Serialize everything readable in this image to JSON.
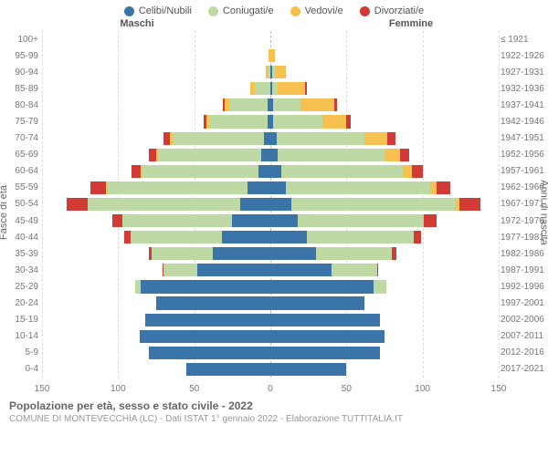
{
  "chart": {
    "type": "population-pyramid",
    "legend": [
      {
        "label": "Celibi/Nubili",
        "color": "#3b74a8"
      },
      {
        "label": "Coniugati/e",
        "color": "#bfd9a4"
      },
      {
        "label": "Vedovi/e",
        "color": "#f7c152"
      },
      {
        "label": "Divorziati/e",
        "color": "#d13a35"
      }
    ],
    "headers": {
      "male": "Maschi",
      "female": "Femmine"
    },
    "y_left_label": "Fasce di età",
    "y_right_label": "Anni di nascita",
    "x_max": 150,
    "x_ticks": [
      150,
      100,
      50,
      0,
      50,
      100,
      150
    ],
    "x_tick_positions": [
      0,
      16.67,
      33.33,
      50,
      66.67,
      83.33,
      100
    ],
    "background_color": "#ffffff",
    "grid_color": "#dddddd",
    "center_line_color": "#bbbbbb",
    "rows": [
      {
        "age": "100+",
        "years": "≤ 1921",
        "m": [
          0,
          0,
          0,
          0
        ],
        "f": [
          0,
          0,
          0,
          0
        ]
      },
      {
        "age": "95-99",
        "years": "1922-1926",
        "m": [
          0,
          0,
          1,
          0
        ],
        "f": [
          0,
          0,
          3,
          0
        ]
      },
      {
        "age": "90-94",
        "years": "1927-1931",
        "m": [
          0,
          1,
          2,
          0
        ],
        "f": [
          1,
          2,
          7,
          0
        ]
      },
      {
        "age": "85-89",
        "years": "1932-1936",
        "m": [
          0,
          10,
          3,
          0
        ],
        "f": [
          1,
          4,
          18,
          1
        ]
      },
      {
        "age": "80-84",
        "years": "1937-1941",
        "m": [
          2,
          25,
          3,
          1
        ],
        "f": [
          2,
          18,
          22,
          2
        ]
      },
      {
        "age": "75-79",
        "years": "1942-1946",
        "m": [
          2,
          38,
          2,
          2
        ],
        "f": [
          2,
          32,
          16,
          3
        ]
      },
      {
        "age": "70-74",
        "years": "1947-1951",
        "m": [
          4,
          60,
          2,
          4
        ],
        "f": [
          4,
          58,
          15,
          5
        ]
      },
      {
        "age": "65-69",
        "years": "1952-1956",
        "m": [
          6,
          68,
          1,
          5
        ],
        "f": [
          5,
          70,
          10,
          6
        ]
      },
      {
        "age": "60-64",
        "years": "1957-1961",
        "m": [
          8,
          76,
          1,
          6
        ],
        "f": [
          7,
          80,
          6,
          7
        ]
      },
      {
        "age": "55-59",
        "years": "1962-1966",
        "m": [
          15,
          92,
          1,
          10
        ],
        "f": [
          10,
          95,
          4,
          9
        ]
      },
      {
        "age": "50-54",
        "years": "1967-1971",
        "m": [
          20,
          100,
          0,
          14
        ],
        "f": [
          14,
          108,
          2,
          14
        ]
      },
      {
        "age": "45-49",
        "years": "1972-1976",
        "m": [
          25,
          72,
          0,
          7
        ],
        "f": [
          18,
          82,
          1,
          8
        ]
      },
      {
        "age": "40-44",
        "years": "1977-1981",
        "m": [
          32,
          60,
          0,
          4
        ],
        "f": [
          24,
          70,
          0,
          5
        ]
      },
      {
        "age": "35-39",
        "years": "1982-1986",
        "m": [
          38,
          40,
          0,
          2
        ],
        "f": [
          30,
          50,
          0,
          3
        ]
      },
      {
        "age": "30-34",
        "years": "1987-1991",
        "m": [
          48,
          22,
          0,
          1
        ],
        "f": [
          40,
          30,
          0,
          1
        ]
      },
      {
        "age": "25-29",
        "years": "1992-1996",
        "m": [
          85,
          4,
          0,
          0
        ],
        "f": [
          68,
          8,
          0,
          0
        ]
      },
      {
        "age": "20-24",
        "years": "1997-2001",
        "m": [
          75,
          0,
          0,
          0
        ],
        "f": [
          62,
          0,
          0,
          0
        ]
      },
      {
        "age": "15-19",
        "years": "2002-2006",
        "m": [
          82,
          0,
          0,
          0
        ],
        "f": [
          72,
          0,
          0,
          0
        ]
      },
      {
        "age": "10-14",
        "years": "2007-2011",
        "m": [
          86,
          0,
          0,
          0
        ],
        "f": [
          75,
          0,
          0,
          0
        ]
      },
      {
        "age": "5-9",
        "years": "2012-2016",
        "m": [
          80,
          0,
          0,
          0
        ],
        "f": [
          72,
          0,
          0,
          0
        ]
      },
      {
        "age": "0-4",
        "years": "2017-2021",
        "m": [
          55,
          0,
          0,
          0
        ],
        "f": [
          50,
          0,
          0,
          0
        ]
      }
    ],
    "title": "Popolazione per età, sesso e stato civile - 2022",
    "subtitle": "COMUNE DI MONTEVECCHIA (LC) - Dati ISTAT 1° gennaio 2022 - Elaborazione TUTTITALIA.IT"
  }
}
